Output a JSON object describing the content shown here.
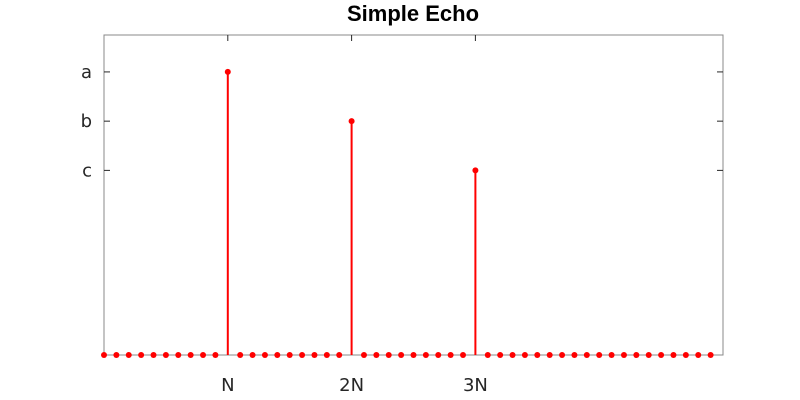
{
  "chart_data": {
    "type": "stem",
    "title": "Simple Echo",
    "xlabel": "",
    "ylabel": "",
    "xlim": [
      0,
      50
    ],
    "ylim": [
      0,
      1.3
    ],
    "grid": false,
    "x_ticks": [
      {
        "value": 10,
        "label": "N"
      },
      {
        "value": 20,
        "label": "2N"
      },
      {
        "value": 30,
        "label": "3N"
      }
    ],
    "y_ticks": [
      {
        "value": 0.75,
        "label": "c"
      },
      {
        "value": 0.95,
        "label": "b"
      },
      {
        "value": 1.15,
        "label": "a"
      }
    ],
    "series": [
      {
        "color": "#ff0000",
        "x": [
          0,
          1,
          2,
          3,
          4,
          5,
          6,
          7,
          8,
          9,
          10,
          11,
          12,
          13,
          14,
          15,
          16,
          17,
          18,
          19,
          20,
          21,
          22,
          23,
          24,
          25,
          26,
          27,
          28,
          29,
          30,
          31,
          32,
          33,
          34,
          35,
          36,
          37,
          38,
          39,
          40,
          41,
          42,
          43,
          44,
          45,
          46,
          47,
          48,
          49
        ],
        "values": [
          0,
          0,
          0,
          0,
          0,
          0,
          0,
          0,
          0,
          0,
          1.15,
          0,
          0,
          0,
          0,
          0,
          0,
          0,
          0,
          0,
          0.95,
          0,
          0,
          0,
          0,
          0,
          0,
          0,
          0,
          0,
          0.75,
          0,
          0,
          0,
          0,
          0,
          0,
          0,
          0,
          0,
          0,
          0,
          0,
          0,
          0,
          0,
          0,
          0,
          0,
          0
        ]
      }
    ]
  }
}
